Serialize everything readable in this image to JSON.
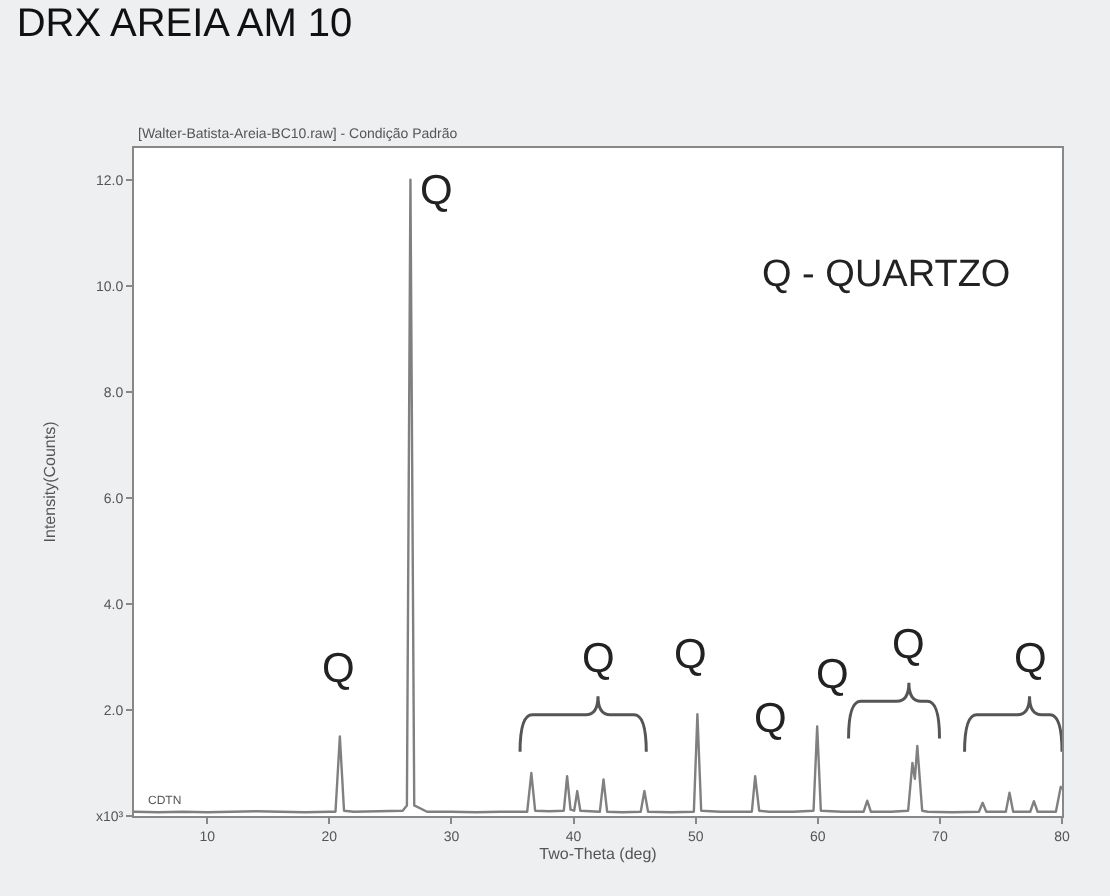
{
  "chart_data": {
    "type": "line",
    "title": "DRX AREIA AM 10",
    "subtitle": "[Walter-Batista-Areia-BC10.raw] - Condição Padrão",
    "xlabel": "Two-Theta (deg)",
    "ylabel": "Intensity(Counts)",
    "xlim": [
      4,
      80
    ],
    "xticks": [
      10,
      20,
      30,
      40,
      50,
      60,
      70,
      80
    ],
    "ylim": [
      0,
      12.6
    ],
    "yticks": [
      {
        "value": 0,
        "label": "x10³"
      },
      {
        "value": 2,
        "label": "2.0"
      },
      {
        "value": 4,
        "label": "4.0"
      },
      {
        "value": 6,
        "label": "6.0"
      },
      {
        "value": 8,
        "label": "8.0"
      },
      {
        "value": 10,
        "label": "10.0"
      },
      {
        "value": 12,
        "label": "12.0"
      }
    ],
    "marker": "none",
    "line_style": "solid",
    "series": [
      {
        "color": "#808080",
        "x": [
          4,
          6,
          8,
          10,
          12,
          14,
          16,
          18,
          20,
          20.5,
          20.86,
          21.2,
          22,
          24,
          26,
          26.35,
          26.64,
          26.95,
          28,
          30,
          32,
          34,
          36.2,
          36.54,
          36.85,
          38,
          39.2,
          39.47,
          39.75,
          40.05,
          40.3,
          40.55,
          42.15,
          42.45,
          42.75,
          44,
          45.5,
          45.8,
          46.1,
          48,
          49.85,
          50.14,
          50.45,
          52,
          54.6,
          54.87,
          55.2,
          56,
          58,
          59.65,
          59.95,
          60.25,
          62,
          63.75,
          64.05,
          64.35,
          66,
          67.4,
          67.75,
          67.95,
          68.15,
          68.55,
          69,
          71,
          73.2,
          73.5,
          73.8,
          75.4,
          75.7,
          76,
          77.4,
          77.7,
          78,
          79.5,
          79.9,
          80
        ],
        "values": [
          0.08,
          0.07,
          0.08,
          0.07,
          0.08,
          0.09,
          0.08,
          0.07,
          0.08,
          0.08,
          1.5,
          0.1,
          0.08,
          0.09,
          0.1,
          0.2,
          12.0,
          0.2,
          0.08,
          0.08,
          0.07,
          0.08,
          0.08,
          0.81,
          0.1,
          0.09,
          0.1,
          0.75,
          0.12,
          0.1,
          0.47,
          0.1,
          0.08,
          0.69,
          0.08,
          0.07,
          0.08,
          0.47,
          0.08,
          0.07,
          0.08,
          1.92,
          0.1,
          0.08,
          0.08,
          0.75,
          0.1,
          0.08,
          0.08,
          0.1,
          1.69,
          0.1,
          0.08,
          0.08,
          0.29,
          0.08,
          0.08,
          0.1,
          1.0,
          0.7,
          1.32,
          0.1,
          0.08,
          0.07,
          0.08,
          0.25,
          0.08,
          0.08,
          0.44,
          0.08,
          0.08,
          0.28,
          0.08,
          0.08,
          0.55,
          0.5
        ]
      }
    ],
    "annotations": [
      "Q",
      "Q",
      "Q - QUARTZO",
      "Q",
      "Q",
      "Q",
      "Q",
      "Q",
      "Q",
      "CDTN"
    ]
  }
}
